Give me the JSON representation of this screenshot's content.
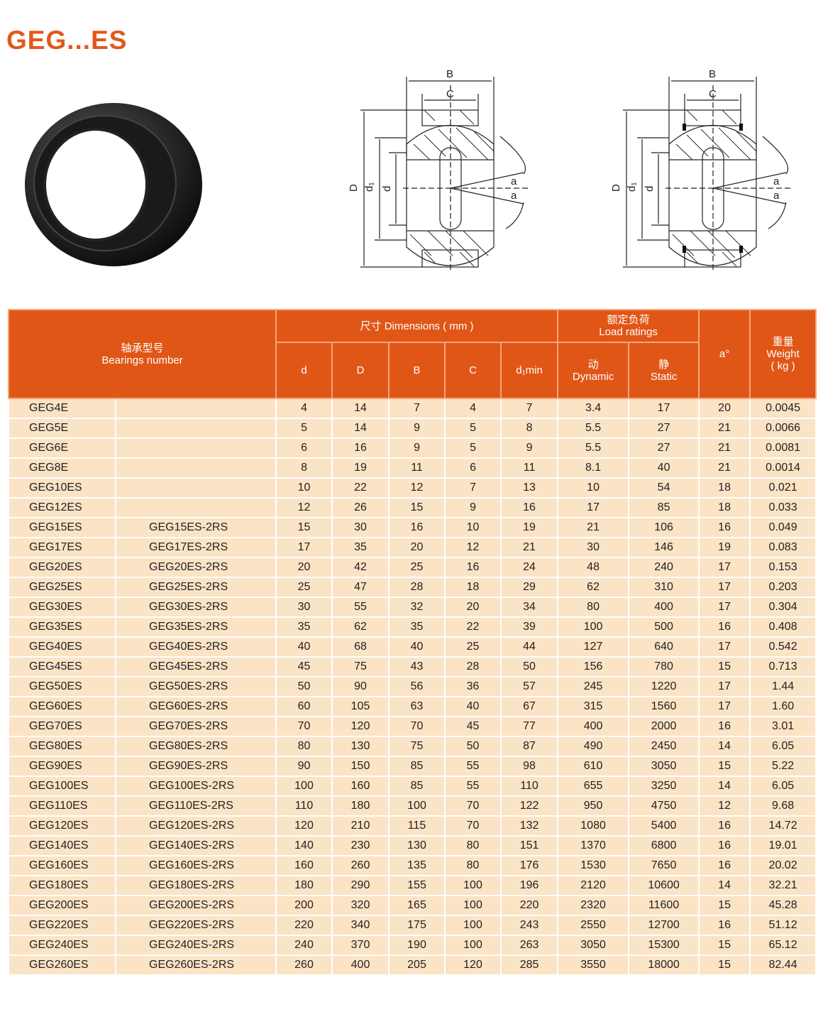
{
  "title": "GEG...ES",
  "diagram_labels": {
    "B": "B",
    "C": "C",
    "D": "D",
    "d1": "d₁",
    "d": "d",
    "a": "a"
  },
  "colors": {
    "header": "#e05617",
    "row": "#fbe3c5",
    "title": "#e2591c"
  },
  "header": {
    "bearing_cn": "轴承型号",
    "bearing_en": "Bearings number",
    "dims": "尺寸  Dimensions ( mm )",
    "load_cn": "额定负荷",
    "load_en": "Load ratings",
    "a": "a°",
    "weight_cn": "重量",
    "weight_en": "Weight",
    "weight_unit": "( kg )",
    "d": "d",
    "D": "D",
    "B": "B",
    "C": "C",
    "d1min": "d₁min",
    "dyn_cn": "动",
    "dyn_en": "Dynamic",
    "static_cn": "静",
    "static_en": "Static"
  },
  "rows": [
    [
      "GEG4E",
      "",
      4,
      14,
      7,
      4,
      7,
      "3.4",
      17,
      20,
      "0.0045"
    ],
    [
      "GEG5E",
      "",
      5,
      14,
      9,
      5,
      8,
      "5.5",
      27,
      21,
      "0.0066"
    ],
    [
      "GEG6E",
      "",
      6,
      16,
      9,
      5,
      9,
      "5.5",
      27,
      21,
      "0.0081"
    ],
    [
      "GEG8E",
      "",
      8,
      19,
      11,
      6,
      11,
      "8.1",
      40,
      21,
      "0.0014"
    ],
    [
      "GEG10ES",
      "",
      10,
      22,
      12,
      7,
      13,
      10,
      54,
      18,
      "0.021"
    ],
    [
      "GEG12ES",
      "",
      12,
      26,
      15,
      9,
      16,
      17,
      85,
      18,
      "0.033"
    ],
    [
      "GEG15ES",
      "GEG15ES-2RS",
      15,
      30,
      16,
      10,
      19,
      21,
      106,
      16,
      "0.049"
    ],
    [
      "GEG17ES",
      "GEG17ES-2RS",
      17,
      35,
      20,
      12,
      21,
      30,
      146,
      19,
      "0.083"
    ],
    [
      "GEG20ES",
      "GEG20ES-2RS",
      20,
      42,
      25,
      16,
      24,
      48,
      240,
      17,
      "0.153"
    ],
    [
      "GEG25ES",
      "GEG25ES-2RS",
      25,
      47,
      28,
      18,
      29,
      62,
      310,
      17,
      "0.203"
    ],
    [
      "GEG30ES",
      "GEG30ES-2RS",
      30,
      55,
      32,
      20,
      34,
      80,
      400,
      17,
      "0.304"
    ],
    [
      "GEG35ES",
      "GEG35ES-2RS",
      35,
      62,
      35,
      22,
      39,
      100,
      500,
      16,
      "0.408"
    ],
    [
      "GEG40ES",
      "GEG40ES-2RS",
      40,
      68,
      40,
      25,
      44,
      127,
      640,
      17,
      "0.542"
    ],
    [
      "GEG45ES",
      "GEG45ES-2RS",
      45,
      75,
      43,
      28,
      50,
      156,
      780,
      15,
      "0.713"
    ],
    [
      "GEG50ES",
      "GEG50ES-2RS",
      50,
      90,
      56,
      36,
      57,
      245,
      1220,
      17,
      "1.44"
    ],
    [
      "GEG60ES",
      "GEG60ES-2RS",
      60,
      105,
      63,
      40,
      67,
      315,
      1560,
      17,
      "1.60"
    ],
    [
      "GEG70ES",
      "GEG70ES-2RS",
      70,
      120,
      70,
      45,
      77,
      400,
      2000,
      16,
      "3.01"
    ],
    [
      "GEG80ES",
      "GEG80ES-2RS",
      80,
      130,
      75,
      50,
      87,
      490,
      2450,
      14,
      "6.05"
    ],
    [
      "GEG90ES",
      "GEG90ES-2RS",
      90,
      150,
      85,
      55,
      98,
      610,
      3050,
      15,
      "5.22"
    ],
    [
      "GEG100ES",
      "GEG100ES-2RS",
      100,
      160,
      85,
      55,
      110,
      655,
      3250,
      14,
      "6.05"
    ],
    [
      "GEG110ES",
      "GEG110ES-2RS",
      110,
      180,
      100,
      70,
      122,
      950,
      4750,
      12,
      "9.68"
    ],
    [
      "GEG120ES",
      "GEG120ES-2RS",
      120,
      210,
      115,
      70,
      132,
      1080,
      5400,
      16,
      "14.72"
    ],
    [
      "GEG140ES",
      "GEG140ES-2RS",
      140,
      230,
      130,
      80,
      151,
      1370,
      6800,
      16,
      "19.01"
    ],
    [
      "GEG160ES",
      "GEG160ES-2RS",
      160,
      260,
      135,
      80,
      176,
      1530,
      7650,
      16,
      "20.02"
    ],
    [
      "GEG180ES",
      "GEG180ES-2RS",
      180,
      290,
      155,
      100,
      196,
      2120,
      10600,
      14,
      "32.21"
    ],
    [
      "GEG200ES",
      "GEG200ES-2RS",
      200,
      320,
      165,
      100,
      220,
      2320,
      11600,
      15,
      "45.28"
    ],
    [
      "GEG220ES",
      "GEG220ES-2RS",
      220,
      340,
      175,
      100,
      243,
      2550,
      12700,
      16,
      "51.12"
    ],
    [
      "GEG240ES",
      "GEG240ES-2RS",
      240,
      370,
      190,
      100,
      263,
      3050,
      15300,
      15,
      "65.12"
    ],
    [
      "GEG260ES",
      "GEG260ES-2RS",
      260,
      400,
      205,
      120,
      285,
      3550,
      18000,
      15,
      "82.44"
    ]
  ]
}
